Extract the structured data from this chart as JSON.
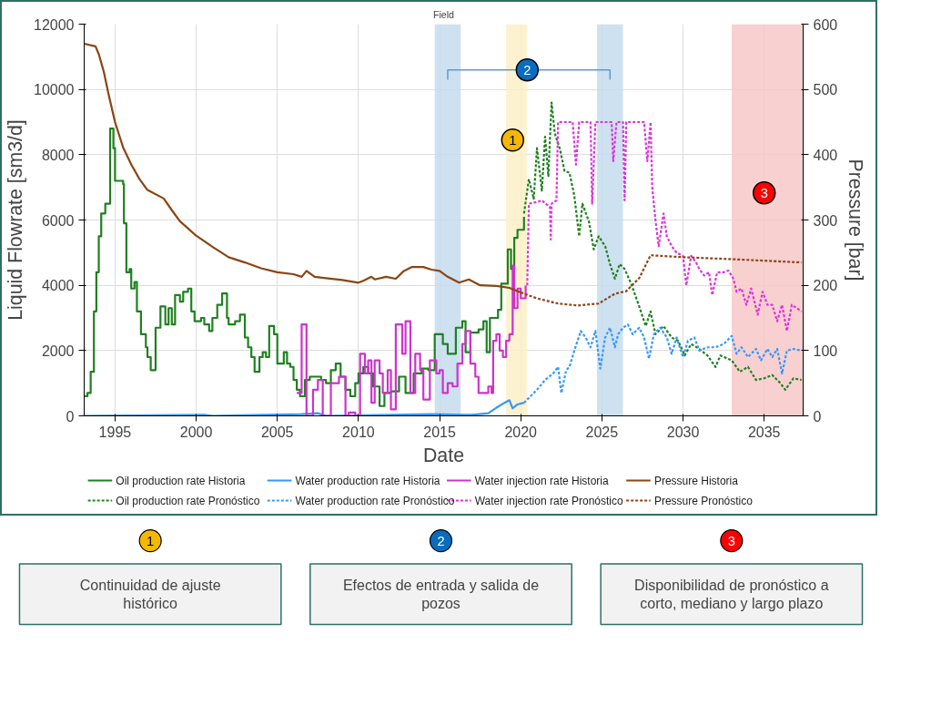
{
  "chart_data": [
    {
      "type": "line",
      "title": "Field",
      "xlabel": "Date",
      "ylabel": "Liquid Flowrate [sm3/d]",
      "y2label": "Pressure [bar]",
      "xlim": [
        1993.1,
        2037.4
      ],
      "xticks": [
        1995,
        2000,
        2005,
        2010,
        2015,
        2020,
        2025,
        2030,
        2035
      ],
      "ylim": [
        0,
        12000
      ],
      "yticks": [
        0,
        2000,
        4000,
        6000,
        8000,
        10000,
        12000
      ],
      "y2lim": [
        0,
        600
      ],
      "y2ticks": [
        0,
        100,
        200,
        300,
        400,
        500,
        600
      ],
      "grid": true,
      "legend": "bottom",
      "series": [
        {
          "name": "Oil production rate Historia",
          "type": "step",
          "color": "#1e8020",
          "line_style": "solid",
          "x": [
            1993.1,
            1993.3,
            1993.5,
            1993.7,
            1993.85,
            1994.0,
            1994.15,
            1994.4,
            1994.7,
            1994.9,
            1995.0,
            1995.5,
            1995.55,
            1995.7,
            1995.9,
            1996.0,
            1996.2,
            1996.35,
            1996.6,
            1996.9,
            1997.0,
            1997.2,
            1997.5,
            1997.8,
            1998.1,
            1998.3,
            1998.5,
            1998.7,
            1999.0,
            1999.2,
            1999.5,
            1999.7,
            1999.9,
            2000.3,
            2000.5,
            2000.8,
            2001.0,
            2001.3,
            2001.6,
            2001.9,
            2002.0,
            2002.4,
            2002.7,
            2003.0,
            2003.2,
            2003.4,
            2003.6,
            2003.9,
            2004.1,
            2004.3,
            2004.5,
            2004.8,
            2005.0,
            2005.4,
            2005.6,
            2005.8,
            2006.0,
            2006.2,
            2006.4,
            2006.7,
            2007.0,
            2007.7,
            2008.0,
            2008.3,
            2008.6,
            2008.9,
            2009.2,
            2009.5,
            2009.8,
            2010.0,
            2010.3,
            2010.6,
            2010.9,
            2011.3,
            2011.6,
            2012.0,
            2012.5,
            2012.9,
            2013.4,
            2013.9,
            2014.3,
            2014.7,
            2015.2,
            2015.5,
            2016.0,
            2016.4,
            2016.6,
            2016.9,
            2017.4,
            2017.7,
            2017.9,
            2018.1,
            2018.6,
            2018.8,
            2019.2,
            2019.4,
            2019.6,
            2019.8,
            2020.2
          ],
          "values": [
            600,
            700,
            1350,
            3200,
            4400,
            5500,
            6200,
            6500,
            8800,
            8200,
            7200,
            7100,
            5900,
            4400,
            4500,
            3900,
            4100,
            3200,
            2500,
            2100,
            1800,
            1400,
            2700,
            3350,
            2800,
            3300,
            2800,
            3700,
            3500,
            3800,
            3900,
            3200,
            2900,
            3000,
            2800,
            2600,
            3000,
            3400,
            3750,
            3000,
            2800,
            2900,
            3100,
            2400,
            2100,
            1800,
            1350,
            1800,
            1950,
            1800,
            2750,
            2500,
            1600,
            1950,
            1600,
            1500,
            1100,
            800,
            600,
            1100,
            1200,
            1100,
            1000,
            1400,
            1600,
            1200,
            800,
            600,
            1000,
            1300,
            1500,
            1300,
            900,
            300,
            700,
            750,
            1200,
            700,
            1300,
            1450,
            1400,
            2500,
            2200,
            1900,
            2700,
            2900,
            1950,
            2550,
            2650,
            2900,
            1950,
            3000,
            3250,
            4050,
            5100,
            4500,
            5450,
            5700,
            6100
          ]
        },
        {
          "name": "Water production rate Historia",
          "type": "line",
          "color": "#3399ff",
          "line_style": "solid",
          "x": [
            1993.1,
            2000.5,
            2001.0,
            2006.5,
            2007.5,
            2008.0,
            2014.5,
            2017.0,
            2018.0,
            2018.5,
            2019.0,
            2019.3,
            2019.5,
            2019.8,
            2020.2
          ],
          "values": [
            0,
            30,
            0,
            50,
            80,
            0,
            50,
            30,
            80,
            250,
            400,
            480,
            230,
            350,
            400
          ]
        },
        {
          "name": "Water injection rate Historia",
          "type": "step",
          "color": "#cc33cc",
          "line_style": "solid",
          "x": [
            2006.2,
            2006.5,
            2006.8,
            2007.2,
            2007.5,
            2007.8,
            2008.3,
            2008.8,
            2009.2,
            2009.4,
            2009.8,
            2010.1,
            2010.4,
            2010.6,
            2010.8,
            2011.0,
            2011.3,
            2011.5,
            2011.8,
            2012.0,
            2012.3,
            2012.7,
            2012.9,
            2013.2,
            2013.5,
            2013.8,
            2014.0,
            2014.4,
            2014.8,
            2015.0,
            2015.2,
            2015.5,
            2015.8,
            2016.1,
            2016.4,
            2016.6,
            2016.9,
            2017.2,
            2017.4,
            2017.8,
            2018.0,
            2018.2,
            2018.3,
            2018.5,
            2018.7,
            2018.9,
            2019.1,
            2019.3,
            2019.5,
            2019.6,
            2019.8,
            2020.0,
            2020.3
          ],
          "values": [
            700,
            2800,
            0,
            800,
            1100,
            0,
            1000,
            1200,
            0,
            100,
            0,
            1900,
            1300,
            1700,
            400,
            1700,
            1300,
            700,
            1400,
            200,
            2800,
            1900,
            2900,
            700,
            1900,
            1400,
            500,
            1700,
            1300,
            1400,
            700,
            1000,
            900,
            1600,
            2200,
            2600,
            1600,
            1200,
            700,
            700,
            900,
            700,
            2300,
            2500,
            2000,
            1800,
            2300,
            2500,
            4600,
            3300,
            3900,
            3600,
            4000
          ]
        },
        {
          "name": "Pressure Historia",
          "type": "line",
          "axis": "y2",
          "color": "#8b4513",
          "line_style": "solid",
          "x": [
            1993.1,
            1993.8,
            1994.0,
            1994.3,
            1994.6,
            1995.0,
            1995.5,
            1996.0,
            1996.5,
            1997.0,
            1998.0,
            1998.5,
            1999.0,
            2000.0,
            2001.0,
            2002.0,
            2003.0,
            2004.0,
            2005.0,
            2006.0,
            2006.5,
            2006.8,
            2007.3,
            2008.0,
            2009.0,
            2010.0,
            2010.3,
            2010.8,
            2011.0,
            2011.7,
            2012.3,
            2012.8,
            2013.3,
            2014.0,
            2014.5,
            2015.0,
            2015.5,
            2016.2,
            2016.8,
            2017.5,
            2018.5,
            2019.3,
            2020.0
          ],
          "values": [
            570,
            566,
            554,
            528,
            493,
            450,
            411,
            385,
            363,
            346,
            333,
            315,
            298,
            276,
            259,
            243,
            235,
            226,
            220,
            217,
            213,
            222,
            213,
            211,
            208,
            204,
            207,
            213,
            209,
            213,
            210,
            222,
            228,
            228,
            224,
            222,
            213,
            204,
            209,
            200,
            199,
            196,
            189
          ]
        },
        {
          "name": "Oil production rate Pronóstico",
          "type": "line",
          "color": "#1e8020",
          "line_style": "dotted",
          "x": [
            2020.2,
            2020.5,
            2020.8,
            2021.0,
            2021.3,
            2021.5,
            2021.7,
            2021.9,
            2022.1,
            2022.4,
            2022.7,
            2023.0,
            2023.3,
            2023.6,
            2023.8,
            2024.2,
            2024.5,
            2024.8,
            2025.2,
            2025.5,
            2025.8,
            2026.1,
            2026.4,
            2026.8,
            2027.3,
            2027.7,
            2028.0,
            2028.3,
            2028.8,
            2029.3,
            2029.7,
            2030.1,
            2030.5,
            2031.0,
            2031.5,
            2032.0,
            2032.3,
            2033.0,
            2033.5,
            2034.0,
            2034.5,
            2035.0,
            2035.5,
            2036.0,
            2036.3,
            2036.8,
            2037.3
          ],
          "values": [
            6200,
            7250,
            6650,
            8200,
            6900,
            8550,
            7350,
            9600,
            8650,
            8200,
            7500,
            7450,
            6750,
            5500,
            6500,
            5950,
            5100,
            5500,
            5200,
            4650,
            4200,
            4650,
            4500,
            4050,
            3350,
            2750,
            3200,
            2500,
            2750,
            2400,
            2300,
            1850,
            2200,
            2050,
            1850,
            1500,
            1850,
            1700,
            1350,
            1500,
            1100,
            1150,
            1250,
            1000,
            800,
            1150,
            1100
          ]
        },
        {
          "name": "Water production rate Pronóstico",
          "type": "line",
          "color": "#3399ff",
          "line_style": "dotted",
          "x": [
            2020.2,
            2020.6,
            2021.0,
            2021.5,
            2022.0,
            2022.3,
            2022.5,
            2022.8,
            2023.0,
            2023.3,
            2023.7,
            2024.0,
            2024.3,
            2024.6,
            2024.9,
            2025.2,
            2025.5,
            2025.8,
            2026.0,
            2026.3,
            2026.6,
            2026.9,
            2027.3,
            2027.6,
            2027.9,
            2028.2,
            2028.6,
            2029.0,
            2029.3,
            2029.6,
            2030.0,
            2030.3,
            2030.7,
            2031.0,
            2031.5,
            2032.0,
            2032.5,
            2033.0,
            2033.3,
            2033.6,
            2034.0,
            2034.5,
            2034.8,
            2035.2,
            2035.5,
            2035.8,
            2036.1,
            2036.4,
            2036.8,
            2037.3
          ],
          "values": [
            400,
            600,
            800,
            1100,
            1300,
            1500,
            700,
            1400,
            1500,
            2000,
            2600,
            2400,
            2100,
            2600,
            1450,
            2400,
            2700,
            2100,
            2500,
            2700,
            2800,
            2500,
            2700,
            2400,
            1750,
            2500,
            2700,
            2400,
            1900,
            2400,
            1800,
            2300,
            2400,
            2000,
            2100,
            2100,
            2200,
            2450,
            1900,
            2100,
            1800,
            2050,
            1700,
            2050,
            1800,
            2050,
            1300,
            2000,
            2050,
            2000
          ]
        },
        {
          "name": "Water injection rate Pronóstico",
          "type": "line",
          "color": "#dd33dd",
          "line_style": "dotted",
          "x": [
            2020.4,
            2020.5,
            2021.0,
            2021.3,
            2021.8,
            2021.85,
            2021.9,
            2022.2,
            2022.3,
            2023.2,
            2023.4,
            2023.6,
            2024.3,
            2024.4,
            2024.6,
            2025.6,
            2025.7,
            2025.9,
            2026.3,
            2026.4,
            2026.5,
            2027.6,
            2027.8,
            2028.0,
            2028.1,
            2028.3,
            2028.5,
            2028.8,
            2029.0,
            2029.3,
            2029.6,
            2030.0,
            2030.2,
            2030.5,
            2030.8,
            2031.0,
            2031.3,
            2031.6,
            2031.8,
            2032.1,
            2032.5,
            2032.8,
            2033.1,
            2033.3,
            2033.6,
            2033.9,
            2034.2,
            2034.6,
            2034.9,
            2035.2,
            2035.5,
            2035.8,
            2036.1,
            2036.4,
            2036.7,
            2037.0,
            2037.3
          ],
          "values": [
            4000,
            6500,
            6550,
            6600,
            6400,
            5400,
            6500,
            6600,
            9000,
            9000,
            7700,
            9000,
            9000,
            6500,
            9000,
            9000,
            7800,
            9000,
            9000,
            6600,
            9000,
            9000,
            7800,
            9000,
            7000,
            6000,
            5200,
            6200,
            5500,
            5200,
            5000,
            4900,
            4000,
            4900,
            4700,
            4500,
            4300,
            4400,
            3700,
            4400,
            4400,
            4450,
            4200,
            3800,
            3900,
            3400,
            3900,
            3100,
            3800,
            3400,
            3400,
            2900,
            3400,
            2600,
            3400,
            3300,
            3200
          ]
        },
        {
          "name": "Pressure Pronóstico",
          "type": "line",
          "axis": "y2",
          "color": "#8b4513",
          "line_style": "dotted",
          "x": [
            2020.0,
            2021.0,
            2022.3,
            2023.5,
            2024.8,
            2025.8,
            2026.5,
            2027.3,
            2028.0,
            2030.0,
            2033.0,
            2037.3
          ],
          "values": [
            189,
            180,
            172,
            169,
            172,
            187,
            191,
            211,
            246,
            243,
            240,
            235
          ]
        }
      ],
      "bands": [
        {
          "axis": "x",
          "from": 2014.7,
          "to": 2016.3,
          "color": "#c6dcef"
        },
        {
          "axis": "x",
          "from": 2024.7,
          "to": 2026.3,
          "color": "#c6dcef"
        },
        {
          "axis": "x",
          "from": 2019.1,
          "to": 2020.4,
          "color": "#fdf0c8"
        },
        {
          "axis": "x",
          "from": 2033.0,
          "to": 2037.4,
          "color": "#f8c8c8"
        }
      ],
      "annotations": [
        {
          "text": "1",
          "x": 2019.5,
          "y": 8450
        },
        {
          "text": "2",
          "x": 2020.4,
          "y": 10600
        },
        {
          "text": "3",
          "x": 2035.0,
          "y": 6830
        }
      ]
    },
    {
      "type": "other",
      "categories": [
        "1",
        "2",
        "3"
      ],
      "colors": [
        "#f5b800",
        "#0a6cbf",
        "#ff0000"
      ],
      "annotations": [
        "Continuidad de ajuste histórico",
        "Efectos de entrada y salida de pozos",
        "Disponibilidad de pronóstico a corto, mediano y largo plazo"
      ]
    }
  ]
}
